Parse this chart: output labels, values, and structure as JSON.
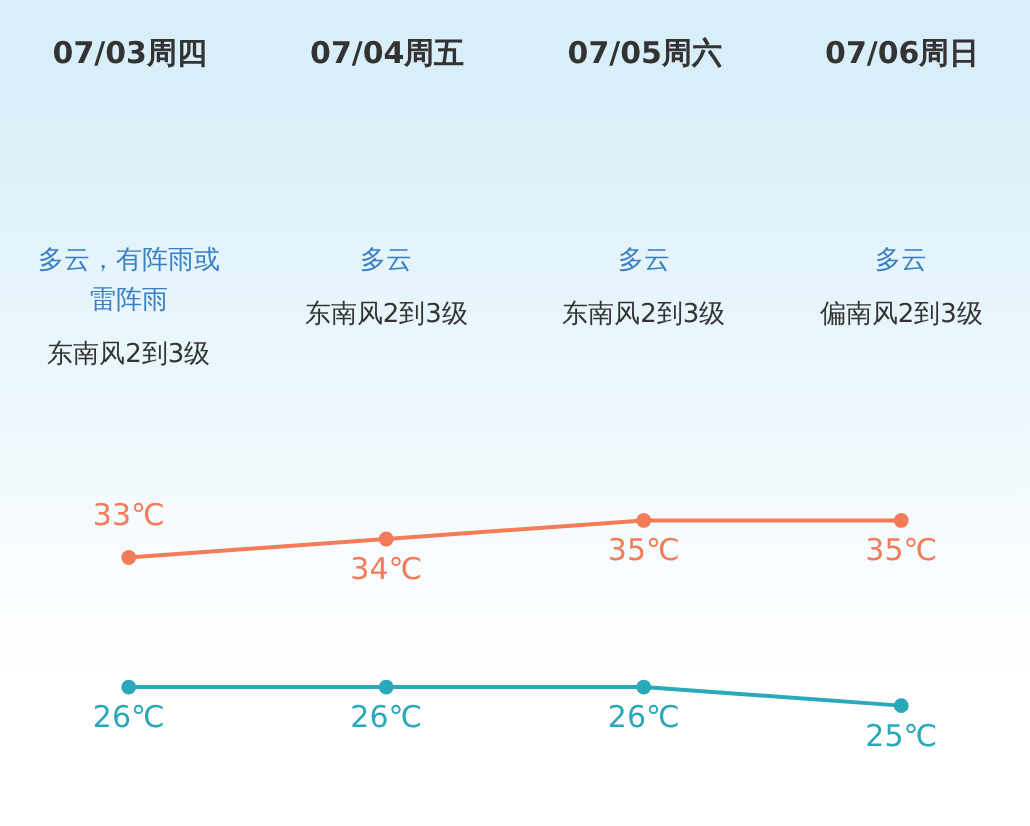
{
  "chart_data": {
    "type": "line",
    "categories": [
      "07/03周四",
      "07/04周五",
      "07/05周六",
      "07/06周日"
    ],
    "series": [
      {
        "color": "#f27b58",
        "values": [
          33,
          34,
          35,
          35
        ],
        "value_labels": [
          "33℃",
          "34℃",
          "35℃",
          "35℃"
        ]
      },
      {
        "color": "#29a9ba",
        "values": [
          26,
          26,
          26,
          25
        ],
        "value_labels": [
          "26℃",
          "26℃",
          "26℃",
          "25℃"
        ]
      }
    ],
    "ylim": [
      18.5,
      59
    ],
    "tick_labels": "x",
    "marker": "circle",
    "annotations": [
      "多云，有阵雨或雷阵雨",
      "东南风2到3级",
      "多云",
      "东南风2到3级",
      "多云",
      "东南风2到3级",
      "多云",
      "偏南风2到3级"
    ]
  }
}
